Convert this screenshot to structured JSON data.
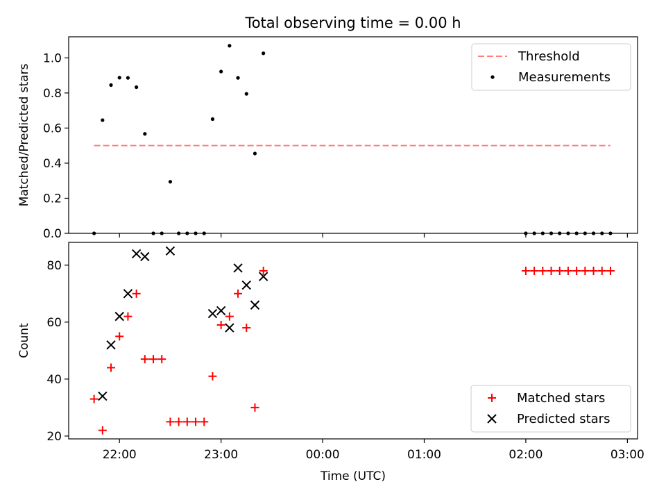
{
  "chart_data": {
    "title": "Total observing time = 0.00 h",
    "xlabel": "Time (UTC)",
    "x_ticks": [
      "22:00",
      "23:00",
      "00:00",
      "01:00",
      "02:00",
      "03:00"
    ],
    "x_tick_hours": [
      22,
      23,
      24,
      25,
      26,
      27
    ],
    "xlim_hours": [
      21.5,
      27.1
    ],
    "panels": [
      {
        "type": "scatter",
        "ylabel": "Matched/Predicted stars",
        "ylim": [
          0,
          1.12
        ],
        "y_ticks": [
          "0.0",
          "0.2",
          "0.4",
          "0.6",
          "0.8",
          "1.0"
        ],
        "y_tick_values": [
          0,
          0.2,
          0.4,
          0.6,
          0.8,
          1.0
        ],
        "legend_position": "upper right",
        "threshold": {
          "name": "Threshold",
          "value": 0.5,
          "x_range": [
            "21:45",
            "02:50"
          ],
          "color": "#ff7f7f"
        },
        "series": [
          {
            "name": "Measurements",
            "color": "#000000",
            "marker": "dot",
            "points": [
              [
                "21:45",
                0.0
              ],
              [
                "21:50",
                0.645
              ],
              [
                "21:55",
                0.845
              ],
              [
                "22:00",
                0.887
              ],
              [
                "22:05",
                0.886
              ],
              [
                "22:10",
                0.833
              ],
              [
                "22:15",
                0.567
              ],
              [
                "22:20",
                0.0
              ],
              [
                "22:25",
                0.0
              ],
              [
                "22:30",
                0.294
              ],
              [
                "22:35",
                0.0
              ],
              [
                "22:40",
                0.0
              ],
              [
                "22:45",
                0.0
              ],
              [
                "22:50",
                0.0
              ],
              [
                "22:55",
                0.651
              ],
              [
                "23:00",
                0.922
              ],
              [
                "23:05",
                1.069
              ],
              [
                "23:10",
                0.886
              ],
              [
                "23:15",
                0.795
              ],
              [
                "23:20",
                0.455
              ],
              [
                "23:25",
                1.026
              ],
              [
                "02:00",
                0.0
              ],
              [
                "02:05",
                0.0
              ],
              [
                "02:10",
                0.0
              ],
              [
                "02:15",
                0.0
              ],
              [
                "02:20",
                0.0
              ],
              [
                "02:25",
                0.0
              ],
              [
                "02:30",
                0.0
              ],
              [
                "02:35",
                0.0
              ],
              [
                "02:40",
                0.0
              ],
              [
                "02:45",
                0.0
              ],
              [
                "02:50",
                0.0
              ]
            ]
          }
        ]
      },
      {
        "type": "scatter",
        "ylabel": "Count",
        "ylim": [
          19,
          88
        ],
        "y_ticks": [
          "20",
          "40",
          "60",
          "80"
        ],
        "y_tick_values": [
          20,
          40,
          60,
          80
        ],
        "legend_position": "lower right",
        "series": [
          {
            "name": "Matched stars",
            "color": "#ff0000",
            "marker": "plus",
            "points": [
              [
                "21:45",
                33
              ],
              [
                "21:50",
                22
              ],
              [
                "21:55",
                44
              ],
              [
                "22:00",
                55
              ],
              [
                "22:05",
                62
              ],
              [
                "22:10",
                70
              ],
              [
                "22:15",
                47
              ],
              [
                "22:20",
                47
              ],
              [
                "22:25",
                47
              ],
              [
                "22:30",
                25
              ],
              [
                "22:35",
                25
              ],
              [
                "22:40",
                25
              ],
              [
                "22:45",
                25
              ],
              [
                "22:50",
                25
              ],
              [
                "22:55",
                41
              ],
              [
                "23:00",
                59
              ],
              [
                "23:05",
                62
              ],
              [
                "23:10",
                70
              ],
              [
                "23:15",
                58
              ],
              [
                "23:20",
                30
              ],
              [
                "23:25",
                78
              ],
              [
                "02:00",
                78
              ],
              [
                "02:05",
                78
              ],
              [
                "02:10",
                78
              ],
              [
                "02:15",
                78
              ],
              [
                "02:20",
                78
              ],
              [
                "02:25",
                78
              ],
              [
                "02:30",
                78
              ],
              [
                "02:35",
                78
              ],
              [
                "02:40",
                78
              ],
              [
                "02:45",
                78
              ],
              [
                "02:50",
                78
              ]
            ]
          },
          {
            "name": "Predicted stars",
            "color": "#000000",
            "marker": "x",
            "points": [
              [
                "21:50",
                34
              ],
              [
                "21:55",
                52
              ],
              [
                "22:00",
                62
              ],
              [
                "22:05",
                70
              ],
              [
                "22:10",
                84
              ],
              [
                "22:15",
                83
              ],
              [
                "22:30",
                85
              ],
              [
                "22:55",
                63
              ],
              [
                "23:00",
                64
              ],
              [
                "23:05",
                58
              ],
              [
                "23:10",
                79
              ],
              [
                "23:15",
                73
              ],
              [
                "23:20",
                66
              ],
              [
                "23:25",
                76
              ]
            ]
          }
        ]
      }
    ]
  }
}
